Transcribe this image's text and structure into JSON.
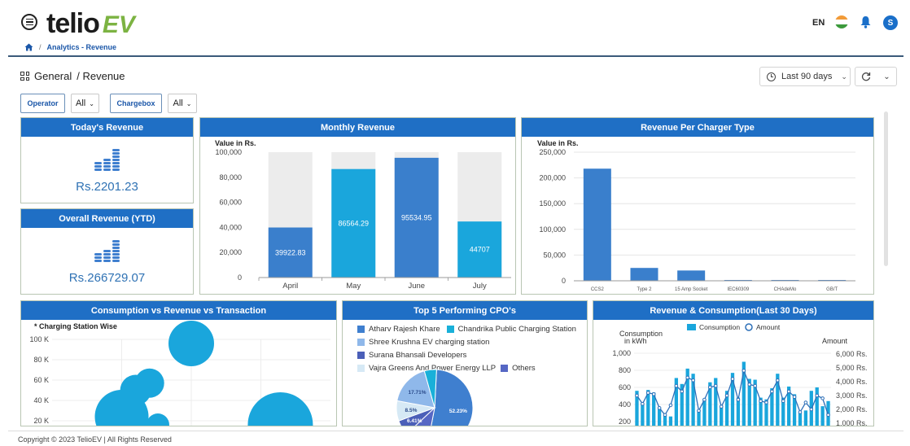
{
  "header": {
    "logo_text_1": "telio",
    "logo_text_2": "EV",
    "language": "EN",
    "avatar_initial": "S"
  },
  "breadcrumb": {
    "current": "Analytics - Revenue"
  },
  "page": {
    "title_section": "General",
    "title_page": "/ Revenue",
    "date_range": "Last 90 days"
  },
  "filters": {
    "operator_label": "Operator",
    "operator_value": "All",
    "chargebox_label": "Chargebox",
    "chargebox_value": "All"
  },
  "todays_revenue": {
    "title": "Today's Revenue",
    "value": "Rs.2201.23"
  },
  "overall_revenue": {
    "title": "Overall Revenue (YTD)",
    "value": "Rs.266729.07"
  },
  "footer": {
    "copyright": "Copyright © 2023 TelioEV | All Rights Reserved"
  },
  "colors": {
    "header_blue": "#1f6fc5",
    "bar_blue": "#3a7fcc",
    "bar_cyan": "#1aa6dc",
    "bar_background": "#ececec"
  },
  "chart_data": [
    {
      "id": "monthly",
      "type": "bar",
      "title": "Monthly Revenue",
      "ylabel": "Value in Rs.",
      "categories": [
        "April",
        "May",
        "June",
        "July"
      ],
      "values": [
        39922.83,
        86564.29,
        95534.95,
        44707
      ],
      "value_labels": [
        "39922.83",
        "86564.29",
        "95534.95",
        "44707"
      ],
      "yticks": [
        "100,000",
        "80,000",
        "60,000",
        "40,000",
        "20,000",
        "0"
      ],
      "ylim": [
        0,
        100000
      ],
      "bar_colors": [
        "#3a7fcc",
        "#1aa6dc",
        "#3a7fcc",
        "#1aa6dc"
      ],
      "background_bars": true
    },
    {
      "id": "charger",
      "type": "bar",
      "title": "Revenue Per Charger Type",
      "ylabel": "Value in Rs.",
      "categories": [
        "CCS2",
        "Type 2",
        "15 Amp Socket",
        "IEC60309",
        "CHAdeMo",
        "GB/T"
      ],
      "values": [
        218000,
        25000,
        20000,
        1000,
        300,
        200
      ],
      "yticks": [
        "250,000",
        "200,000",
        "150,000",
        "100,000",
        "50,000",
        "0"
      ],
      "ylim": [
        0,
        250000
      ],
      "grid": true
    },
    {
      "id": "bubble",
      "type": "scatter",
      "title": "Consumption vs Revenue vs Transaction",
      "subtitle": "* Charging Station Wise",
      "yticks": [
        "100 K",
        "80 K",
        "60 K",
        "40 K",
        "20 K"
      ],
      "ylim": [
        20000,
        100000
      ],
      "points": [
        {
          "x": 5,
          "y": 96000,
          "r": 28
        },
        {
          "x": 3.5,
          "y": 57000,
          "r": 18
        },
        {
          "x": 3,
          "y": 50000,
          "r": 19
        },
        {
          "x": 2.5,
          "y": 24000,
          "r": 33
        },
        {
          "x": 8.2,
          "y": 16000,
          "r": 40
        },
        {
          "x": 3.8,
          "y": 16000,
          "r": 14
        }
      ]
    },
    {
      "id": "cpo",
      "type": "pie",
      "title": "Top 5 Performing CPO's",
      "legend": [
        {
          "name": "Atharv Rajesh Khare",
          "color": "#3f7fcf"
        },
        {
          "name": "Chandrika Public Charging Station",
          "color": "#19b0d9"
        },
        {
          "name": "Shree Krushna EV charging station",
          "color": "#8fb8ea"
        },
        {
          "name": "Surana Bhansali Developers",
          "color": "#4b5fb8"
        },
        {
          "name": "Vajra Greens And Power Energy LLP",
          "color": "#d6e9f5"
        },
        {
          "name": "Others",
          "color": "#5667c4"
        }
      ],
      "slices": [
        {
          "name": "Atharv Rajesh Khare",
          "value": 52.23,
          "label": "52.23%"
        },
        {
          "name": "Others",
          "value": 10,
          "label": ""
        },
        {
          "name": "Surana Bhansali Developers",
          "value": 6.41,
          "label": "6.41%"
        },
        {
          "name": "Vajra Greens And Power Energy LLP",
          "value": 8.5,
          "label": "8.5%"
        },
        {
          "name": "Shree Krushna EV charging station",
          "value": 17.71,
          "label": "17.71%"
        },
        {
          "name": "Chandrika Public Charging Station",
          "value": 5.15,
          "label": ""
        }
      ]
    },
    {
      "id": "combo",
      "type": "bar",
      "title": "Revenue & Consumption(Last 30 Days)",
      "ylabel_left": "Consumption in kWh",
      "ylabel_right": "Amount",
      "legend": [
        "Consumption",
        "Amount"
      ],
      "yticks_left": [
        "1,000",
        "800",
        "600",
        "400",
        "200"
      ],
      "yticks_right": [
        "6,000 Rs.",
        "5,000 Rs.",
        "4,000 Rs.",
        "3,000 Rs.",
        "2,000 Rs.",
        "1,000 Rs."
      ],
      "ylim_left": [
        200,
        1000
      ],
      "consumption": [
        560,
        420,
        570,
        540,
        360,
        280,
        260,
        710,
        640,
        820,
        760,
        340,
        470,
        660,
        710,
        390,
        560,
        770,
        480,
        900,
        700,
        690,
        480,
        460,
        590,
        760,
        480,
        610,
        520,
        300,
        330,
        560,
        600,
        380,
        440
      ],
      "amount": [
        3000,
        2400,
        3200,
        3100,
        2100,
        1600,
        2300,
        3700,
        3300,
        4300,
        4100,
        1900,
        2700,
        3600,
        3700,
        2200,
        3000,
        4200,
        2700,
        4800,
        3800,
        3700,
        2600,
        2500,
        3300,
        4100,
        2600,
        3300,
        2900,
        1800,
        2500,
        2000,
        3000,
        2800,
        1600
      ]
    }
  ]
}
